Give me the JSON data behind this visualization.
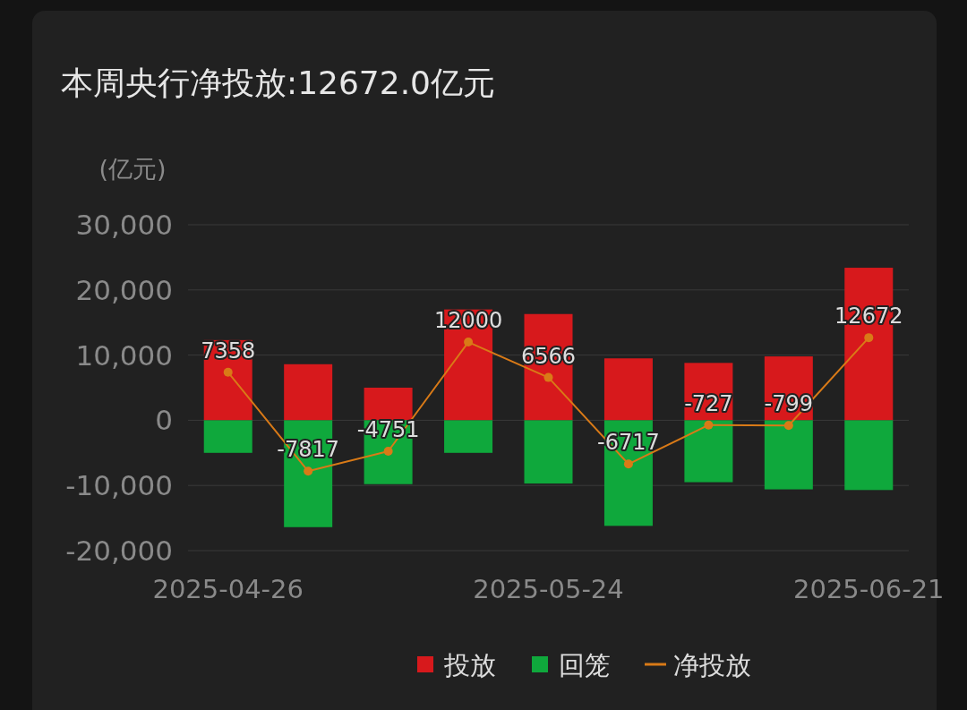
{
  "chart_data": {
    "type": "bar",
    "title": "本周央行净投放:12672.0亿元",
    "ylabel": "(亿元)",
    "categories": [
      "2025-04-26",
      null,
      null,
      null,
      "2025-05-24",
      null,
      null,
      null,
      "2025-06-21"
    ],
    "stacked": true,
    "series": [
      {
        "name": "投放",
        "color": "#d7191c",
        "values": [
          12300,
          8600,
          5000,
          17000,
          16300,
          9500,
          8800,
          9800,
          23400
        ]
      },
      {
        "name": "回笼",
        "color": "#0fa83c",
        "values": [
          -5000,
          -16400,
          -9800,
          -5000,
          -9700,
          -16200,
          -9500,
          -10600,
          -10700
        ]
      },
      {
        "name": "净投放",
        "type": "line",
        "color": "#d97a17",
        "marker": "circle",
        "values": [
          7358,
          -7817,
          -4751,
          12000,
          6566,
          -6717,
          -727,
          -799,
          12672
        ],
        "value_labels": [
          "7358",
          "-7817",
          "-4751",
          "12000",
          "6566",
          "-6717",
          "-727",
          "-799",
          "12672"
        ]
      }
    ],
    "ylim": [
      -20000,
      30000
    ],
    "yticks": [
      {
        "value": -20000,
        "label": "-20,000"
      },
      {
        "value": -10000,
        "label": "-10,000"
      },
      {
        "value": 0,
        "label": "0"
      },
      {
        "value": 10000,
        "label": "10,000"
      },
      {
        "value": 20000,
        "label": "20,000"
      },
      {
        "value": 30000,
        "label": "30,000"
      }
    ],
    "grid": "y",
    "legend": "bottom"
  }
}
